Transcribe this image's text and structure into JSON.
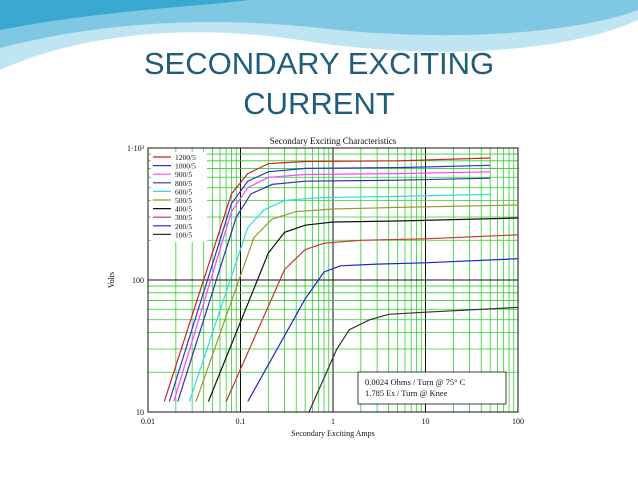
{
  "slide": {
    "title_line1": "SECONDARY EXCITING",
    "title_line2": "CURRENT",
    "title_color": "#1f5d7a",
    "wave_colors": [
      "#bfe4f2",
      "#7ec8e3",
      "#3aa9d1"
    ]
  },
  "chart_data": {
    "type": "line",
    "title": "Secondary Exciting Characteristics",
    "xlabel": "Secondary Exciting Amps",
    "ylabel": "Volts",
    "x_scale": "log",
    "y_scale": "log",
    "xlim": [
      0.01,
      100
    ],
    "ylim": [
      10,
      1000
    ],
    "x_ticks": [
      {
        "value": 0.01,
        "label": "0.01"
      },
      {
        "value": 0.1,
        "label": "0.1"
      },
      {
        "value": 1,
        "label": "1"
      },
      {
        "value": 10,
        "label": "10"
      },
      {
        "value": 100,
        "label": "100"
      }
    ],
    "y_ticks": [
      {
        "value": 10,
        "label": "10"
      },
      {
        "value": 100,
        "label": "100"
      },
      {
        "value": 1000,
        "label": "1·10³"
      }
    ],
    "grid": true,
    "grid_color": "#33cc33",
    "legend_position": "top-left",
    "annotation_lines": [
      "0.0024 Ohms / Turn @ 75° C",
      "1.785 Es / Turn @ Knee"
    ],
    "series": [
      {
        "name": "1200/5",
        "color": "#cc2222",
        "points": [
          [
            0.015,
            12
          ],
          [
            0.08,
            450
          ],
          [
            0.12,
            640
          ],
          [
            0.2,
            760
          ],
          [
            0.5,
            790
          ],
          [
            5,
            800
          ],
          [
            50,
            840
          ]
        ]
      },
      {
        "name": "1000/5",
        "color": "#3333cc",
        "points": [
          [
            0.017,
            12
          ],
          [
            0.08,
            380
          ],
          [
            0.12,
            560
          ],
          [
            0.2,
            660
          ],
          [
            0.5,
            700
          ],
          [
            5,
            710
          ],
          [
            50,
            740
          ]
        ]
      },
      {
        "name": "900/5",
        "color": "#ff44ff",
        "points": [
          [
            0.019,
            12
          ],
          [
            0.08,
            330
          ],
          [
            0.12,
            500
          ],
          [
            0.2,
            600
          ],
          [
            0.5,
            630
          ],
          [
            5,
            640
          ],
          [
            50,
            660
          ]
        ]
      },
      {
        "name": "800/5",
        "color": "#3333aa",
        "points": [
          [
            0.021,
            12
          ],
          [
            0.09,
            300
          ],
          [
            0.13,
            450
          ],
          [
            0.22,
            530
          ],
          [
            0.5,
            560
          ],
          [
            5,
            570
          ],
          [
            50,
            590
          ]
        ]
      },
      {
        "name": "600/5",
        "color": "#33dddd",
        "points": [
          [
            0.028,
            12
          ],
          [
            0.12,
            250
          ],
          [
            0.18,
            340
          ],
          [
            0.3,
            400
          ],
          [
            0.7,
            420
          ],
          [
            5,
            430
          ],
          [
            50,
            445
          ]
        ]
      },
      {
        "name": "500/5",
        "color": "#999933",
        "points": [
          [
            0.033,
            12
          ],
          [
            0.14,
            210
          ],
          [
            0.22,
            290
          ],
          [
            0.4,
            330
          ],
          [
            1,
            345
          ],
          [
            5,
            355
          ],
          [
            100,
            370
          ]
        ]
      },
      {
        "name": "400/5",
        "color": "#111111",
        "points": [
          [
            0.045,
            12
          ],
          [
            0.2,
            160
          ],
          [
            0.3,
            230
          ],
          [
            0.5,
            260
          ],
          [
            1,
            275
          ],
          [
            5,
            280
          ],
          [
            100,
            295
          ]
        ]
      },
      {
        "name": "300/5",
        "color": "#cc3333",
        "points": [
          [
            0.07,
            12
          ],
          [
            0.3,
            120
          ],
          [
            0.5,
            170
          ],
          [
            0.8,
            190
          ],
          [
            2,
            200
          ],
          [
            10,
            205
          ],
          [
            100,
            220
          ]
        ]
      },
      {
        "name": "200/5",
        "color": "#2222cc",
        "points": [
          [
            0.12,
            12
          ],
          [
            0.5,
            72
          ],
          [
            0.8,
            115
          ],
          [
            1.2,
            128
          ],
          [
            3,
            132
          ],
          [
            10,
            135
          ],
          [
            100,
            145
          ]
        ]
      },
      {
        "name": "100/5",
        "color": "#333333",
        "points": [
          [
            0.55,
            10
          ],
          [
            1.1,
            30
          ],
          [
            1.5,
            42
          ],
          [
            2.5,
            50
          ],
          [
            4,
            55
          ],
          [
            10,
            57
          ],
          [
            100,
            62
          ]
        ]
      }
    ]
  }
}
